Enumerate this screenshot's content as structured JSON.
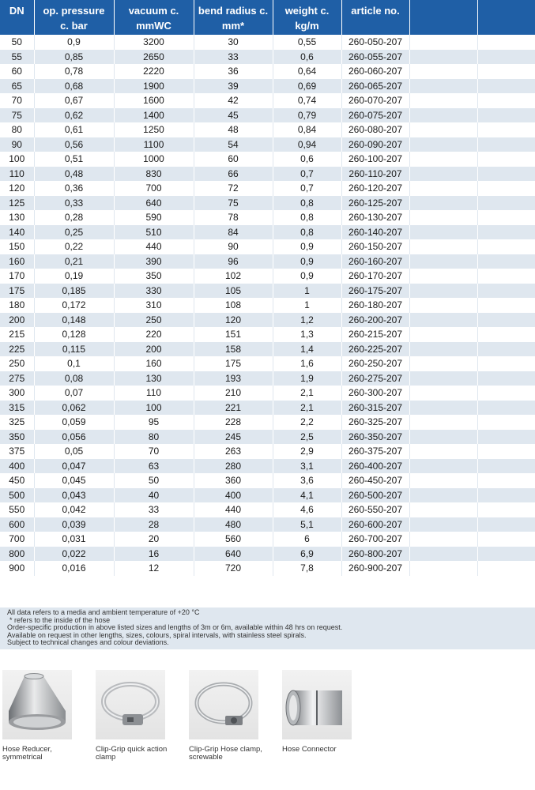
{
  "table": {
    "headers": [
      {
        "line1": "DN",
        "line2": ""
      },
      {
        "line1": "op. pressure",
        "line2": "c. bar"
      },
      {
        "line1": "vacuum c.",
        "line2": "mmWC"
      },
      {
        "line1": "bend radius c.",
        "line2": "mm*"
      },
      {
        "line1": "weight c.",
        "line2": "kg/m"
      },
      {
        "line1": "article no.",
        "line2": ""
      },
      {
        "line1": "",
        "line2": ""
      },
      {
        "line1": "",
        "line2": ""
      }
    ],
    "rows": [
      [
        "50",
        "0,9",
        "3200",
        "30",
        "0,55",
        "260-050-207"
      ],
      [
        "55",
        "0,85",
        "2650",
        "33",
        "0,6",
        "260-055-207"
      ],
      [
        "60",
        "0,78",
        "2220",
        "36",
        "0,64",
        "260-060-207"
      ],
      [
        "65",
        "0,68",
        "1900",
        "39",
        "0,69",
        "260-065-207"
      ],
      [
        "70",
        "0,67",
        "1600",
        "42",
        "0,74",
        "260-070-207"
      ],
      [
        "75",
        "0,62",
        "1400",
        "45",
        "0,79",
        "260-075-207"
      ],
      [
        "80",
        "0,61",
        "1250",
        "48",
        "0,84",
        "260-080-207"
      ],
      [
        "90",
        "0,56",
        "1100",
        "54",
        "0,94",
        "260-090-207"
      ],
      [
        "100",
        "0,51",
        "1000",
        "60",
        "0,6",
        "260-100-207"
      ],
      [
        "110",
        "0,48",
        "830",
        "66",
        "0,7",
        "260-110-207"
      ],
      [
        "120",
        "0,36",
        "700",
        "72",
        "0,7",
        "260-120-207"
      ],
      [
        "125",
        "0,33",
        "640",
        "75",
        "0,8",
        "260-125-207"
      ],
      [
        "130",
        "0,28",
        "590",
        "78",
        "0,8",
        "260-130-207"
      ],
      [
        "140",
        "0,25",
        "510",
        "84",
        "0,8",
        "260-140-207"
      ],
      [
        "150",
        "0,22",
        "440",
        "90",
        "0,9",
        "260-150-207"
      ],
      [
        "160",
        "0,21",
        "390",
        "96",
        "0,9",
        "260-160-207"
      ],
      [
        "170",
        "0,19",
        "350",
        "102",
        "0,9",
        "260-170-207"
      ],
      [
        "175",
        "0,185",
        "330",
        "105",
        "1",
        "260-175-207"
      ],
      [
        "180",
        "0,172",
        "310",
        "108",
        "1",
        "260-180-207"
      ],
      [
        "200",
        "0,148",
        "250",
        "120",
        "1,2",
        "260-200-207"
      ],
      [
        "215",
        "0,128",
        "220",
        "151",
        "1,3",
        "260-215-207"
      ],
      [
        "225",
        "0,115",
        "200",
        "158",
        "1,4",
        "260-225-207"
      ],
      [
        "250",
        "0,1",
        "160",
        "175",
        "1,6",
        "260-250-207"
      ],
      [
        "275",
        "0,08",
        "130",
        "193",
        "1,9",
        "260-275-207"
      ],
      [
        "300",
        "0,07",
        "110",
        "210",
        "2,1",
        "260-300-207"
      ],
      [
        "315",
        "0,062",
        "100",
        "221",
        "2,1",
        "260-315-207"
      ],
      [
        "325",
        "0,059",
        "95",
        "228",
        "2,2",
        "260-325-207"
      ],
      [
        "350",
        "0,056",
        "80",
        "245",
        "2,5",
        "260-350-207"
      ],
      [
        "375",
        "0,05",
        "70",
        "263",
        "2,9",
        "260-375-207"
      ],
      [
        "400",
        "0,047",
        "63",
        "280",
        "3,1",
        "260-400-207"
      ],
      [
        "450",
        "0,045",
        "50",
        "360",
        "3,6",
        "260-450-207"
      ],
      [
        "500",
        "0,043",
        "40",
        "400",
        "4,1",
        "260-500-207"
      ],
      [
        "550",
        "0,042",
        "33",
        "440",
        "4,6",
        "260-550-207"
      ],
      [
        "600",
        "0,039",
        "28",
        "480",
        "5,1",
        "260-600-207"
      ],
      [
        "700",
        "0,031",
        "20",
        "560",
        "6",
        "260-700-207"
      ],
      [
        "800",
        "0,022",
        "16",
        "640",
        "6,9",
        "260-800-207"
      ],
      [
        "900",
        "0,016",
        "12",
        "720",
        "7,8",
        "260-900-207"
      ]
    ]
  },
  "notes": [
    "All data refers to a media and ambient temperature of +20 °C",
    "* refers to the inside of the hose",
    "Order-specific production in above listed sizes and lengths of 3m or 6m, available within 48 hrs on request.",
    "Available on request in other lengths, sizes, colours, spiral intervals, with stainless steel spirals.",
    "Subject to technical changes and colour deviations."
  ],
  "products": [
    {
      "line1": "Hose Reducer,",
      "line2": "symmetrical",
      "icon": "hose-reducer"
    },
    {
      "line1": "Clip-Grip quick action",
      "line2": "clamp",
      "icon": "quick-action-clamp"
    },
    {
      "line1": "Clip-Grip Hose clamp,",
      "line2": "screwable",
      "icon": "screw-clamp"
    },
    {
      "line1": "Hose Connector",
      "line2": "",
      "icon": "hose-connector"
    }
  ],
  "colors": {
    "header": "#1f5fa6",
    "stripe": "#dfe7ef"
  }
}
